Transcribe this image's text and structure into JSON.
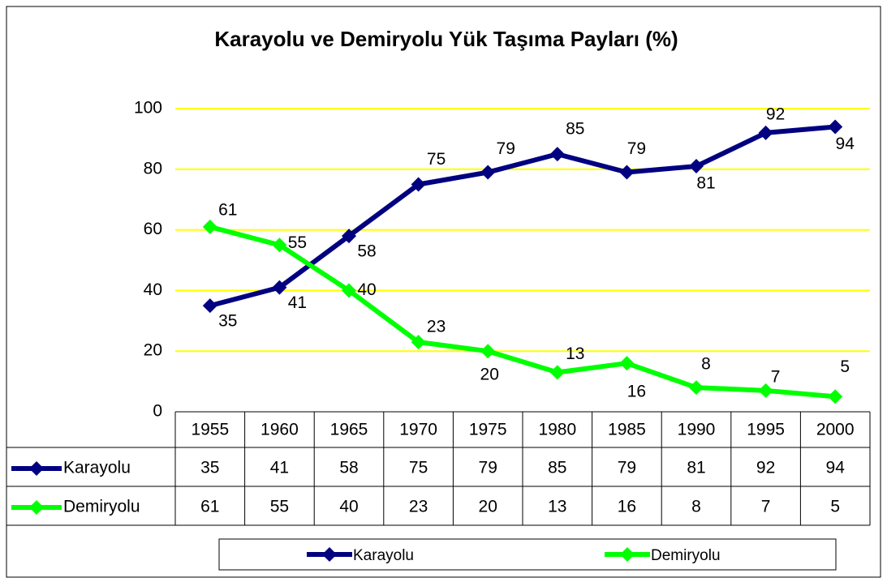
{
  "chart_data": {
    "type": "line",
    "title": "Karayolu ve Demiryolu Yük Taşıma Payları (%)",
    "categories": [
      "1955",
      "1960",
      "1965",
      "1970",
      "1975",
      "1980",
      "1985",
      "1990",
      "1995",
      "2000"
    ],
    "series": [
      {
        "name": "Karayolu",
        "color": "#000080",
        "values": [
          35,
          41,
          58,
          75,
          79,
          85,
          79,
          81,
          92,
          94
        ]
      },
      {
        "name": "Demiryolu",
        "color": "#00ff00",
        "values": [
          61,
          55,
          40,
          23,
          20,
          13,
          16,
          8,
          7,
          5
        ]
      }
    ],
    "ylim": [
      0,
      100
    ],
    "yticks": [
      0,
      20,
      40,
      60,
      80,
      100
    ],
    "grid": true,
    "grid_color": "#ffff00",
    "legend": "bottom",
    "data_table": true
  }
}
